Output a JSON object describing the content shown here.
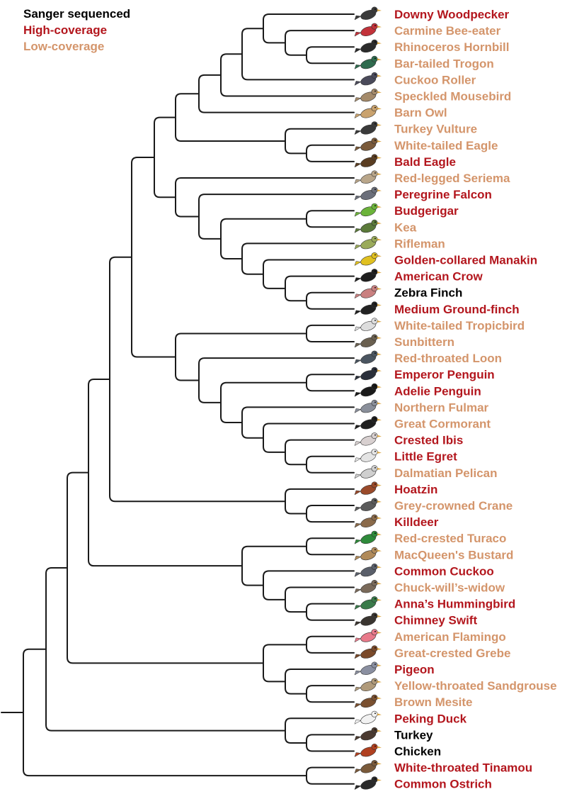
{
  "legend": {
    "sanger": "Sanger sequenced",
    "high": "High-coverage",
    "low": "Low-coverage"
  },
  "colors": {
    "sanger": "#000000",
    "high": "#b3161d",
    "low": "#d4956b"
  },
  "species": [
    {
      "name": "Downy Woodpecker",
      "category": "high",
      "icon": "woodpecker-icon",
      "icon_color": "#3a3a3a"
    },
    {
      "name": "Carmine Bee-eater",
      "category": "low",
      "icon": "bee-eater-icon",
      "icon_color": "#c2323a"
    },
    {
      "name": "Rhinoceros Hornbill",
      "category": "low",
      "icon": "hornbill-icon",
      "icon_color": "#2b2b2b"
    },
    {
      "name": "Bar-tailed Trogon",
      "category": "low",
      "icon": "trogon-icon",
      "icon_color": "#2f6b4e"
    },
    {
      "name": "Cuckoo Roller",
      "category": "low",
      "icon": "cuckoo-roller-icon",
      "icon_color": "#4a4a5a"
    },
    {
      "name": "Speckled Mousebird",
      "category": "low",
      "icon": "mousebird-icon",
      "icon_color": "#a48a6a"
    },
    {
      "name": "Barn Owl",
      "category": "low",
      "icon": "owl-icon",
      "icon_color": "#c9a26e"
    },
    {
      "name": "Turkey Vulture",
      "category": "low",
      "icon": "vulture-icon",
      "icon_color": "#3a3a3a"
    },
    {
      "name": "White-tailed Eagle",
      "category": "low",
      "icon": "eagle-icon",
      "icon_color": "#7a5a3a"
    },
    {
      "name": "Bald Eagle",
      "category": "high",
      "icon": "bald-eagle-icon",
      "icon_color": "#5a3d22"
    },
    {
      "name": "Red-legged Seriema",
      "category": "low",
      "icon": "seriema-icon",
      "icon_color": "#b9a68a"
    },
    {
      "name": "Peregrine Falcon",
      "category": "high",
      "icon": "falcon-icon",
      "icon_color": "#6b6f7a"
    },
    {
      "name": "Budgerigar",
      "category": "high",
      "icon": "budgerigar-icon",
      "icon_color": "#6bb33a"
    },
    {
      "name": "Kea",
      "category": "low",
      "icon": "kea-icon",
      "icon_color": "#5b7a3a"
    },
    {
      "name": "Rifleman",
      "category": "low",
      "icon": "rifleman-icon",
      "icon_color": "#9aaa5a"
    },
    {
      "name": "Golden-collared Manakin",
      "category": "high",
      "icon": "manakin-icon",
      "icon_color": "#e0c020"
    },
    {
      "name": "American Crow",
      "category": "high",
      "icon": "crow-icon",
      "icon_color": "#1e1e1e"
    },
    {
      "name": "Zebra Finch",
      "category": "sanger",
      "icon": "finch-icon",
      "icon_color": "#c98080"
    },
    {
      "name": "Medium Ground-finch",
      "category": "high",
      "icon": "ground-finch-icon",
      "icon_color": "#222222"
    },
    {
      "name": "White-tailed Tropicbird",
      "category": "low",
      "icon": "tropicbird-icon",
      "icon_color": "#dddddd"
    },
    {
      "name": "Sunbittern",
      "category": "low",
      "icon": "sunbittern-icon",
      "icon_color": "#6a6050"
    },
    {
      "name": "Red-throated Loon",
      "category": "low",
      "icon": "loon-icon",
      "icon_color": "#4a5560"
    },
    {
      "name": "Emperor Penguin",
      "category": "high",
      "icon": "penguin-icon",
      "icon_color": "#2a2f3a"
    },
    {
      "name": "Adelie Penguin",
      "category": "high",
      "icon": "adelie-penguin-icon",
      "icon_color": "#1a1a1a"
    },
    {
      "name": "Northern Fulmar",
      "category": "low",
      "icon": "fulmar-icon",
      "icon_color": "#8a8f9a"
    },
    {
      "name": "Great Cormorant",
      "category": "low",
      "icon": "cormorant-icon",
      "icon_color": "#1e1e1e"
    },
    {
      "name": "Crested Ibis",
      "category": "high",
      "icon": "ibis-icon",
      "icon_color": "#d8d0d0"
    },
    {
      "name": "Little Egret",
      "category": "high",
      "icon": "egret-icon",
      "icon_color": "#e4e4e4"
    },
    {
      "name": "Dalmatian Pelican",
      "category": "low",
      "icon": "pelican-icon",
      "icon_color": "#cfcfcf"
    },
    {
      "name": "Hoatzin",
      "category": "high",
      "icon": "hoatzin-icon",
      "icon_color": "#9a4a2a"
    },
    {
      "name": "Grey-crowned Crane",
      "category": "low",
      "icon": "crane-icon",
      "icon_color": "#5a5a5a"
    },
    {
      "name": "Killdeer",
      "category": "high",
      "icon": "killdeer-icon",
      "icon_color": "#8a6a4a"
    },
    {
      "name": "Red-crested Turaco",
      "category": "low",
      "icon": "turaco-icon",
      "icon_color": "#2e8a3a"
    },
    {
      "name": "MacQueen's Bustard",
      "category": "low",
      "icon": "bustard-icon",
      "icon_color": "#b08a5a"
    },
    {
      "name": "Common Cuckoo",
      "category": "high",
      "icon": "cuckoo-icon",
      "icon_color": "#5a5f6a"
    },
    {
      "name": "Chuck-will’s-widow",
      "category": "low",
      "icon": "nightjar-icon",
      "icon_color": "#7a6a5a"
    },
    {
      "name": "Anna’s Hummingbird",
      "category": "high",
      "icon": "hummingbird-icon",
      "icon_color": "#3a7a4a"
    },
    {
      "name": "Chimney Swift",
      "category": "high",
      "icon": "swift-icon",
      "icon_color": "#3a3530"
    },
    {
      "name": "American Flamingo",
      "category": "low",
      "icon": "flamingo-icon",
      "icon_color": "#e87a8a"
    },
    {
      "name": "Great-crested Grebe",
      "category": "low",
      "icon": "grebe-icon",
      "icon_color": "#7a4a2a"
    },
    {
      "name": "Pigeon",
      "category": "high",
      "icon": "pigeon-icon",
      "icon_color": "#8a8fa0"
    },
    {
      "name": "Yellow-throated Sandgrouse",
      "category": "low",
      "icon": "sandgrouse-icon",
      "icon_color": "#b09a7a"
    },
    {
      "name": "Brown Mesite",
      "category": "low",
      "icon": "mesite-icon",
      "icon_color": "#7a5030"
    },
    {
      "name": "Peking Duck",
      "category": "high",
      "icon": "duck-icon",
      "icon_color": "#f2f2f2"
    },
    {
      "name": "Turkey",
      "category": "sanger",
      "icon": "turkey-icon",
      "icon_color": "#4a3a30"
    },
    {
      "name": "Chicken",
      "category": "sanger",
      "icon": "chicken-icon",
      "icon_color": "#b04020"
    },
    {
      "name": "White-throated Tinamou",
      "category": "high",
      "icon": "tinamou-icon",
      "icon_color": "#7a5a3a"
    },
    {
      "name": "Common Ostrich",
      "category": "high",
      "icon": "ostrich-icon",
      "icon_color": "#2a2a2a"
    }
  ],
  "tree": {
    "c": [
      {
        "c": [
          {
            "c": [
              {
                "c": [
                  {
                    "c": [
                      {
                        "c": [
                          {
                            "c": [
                              {
                                "c": [
                                  {
                                    "c": [
                                      {
                                        "c": [
                                          {
                                            "l": 0
                                          },
                                          {
                                            "c": [
                                              {
                                                "l": 1
                                              },
                                              {
                                                "c": [
                                                  {
                                                    "l": 2
                                                  },
                                                  {
                                                    "l": 3
                                                  }
                                                ]
                                              }
                                            ]
                                          }
                                        ]
                                      },
                                      {
                                        "l": 4
                                      }
                                    ]
                                  },
                                  {
                                    "l": 5
                                  }
                                ]
                              },
                              {
                                "l": 6
                              }
                            ]
                          },
                          {
                            "c": [
                              {
                                "l": 7
                              },
                              {
                                "c": [
                                  {
                                    "l": 8
                                  },
                                  {
                                    "l": 9
                                  }
                                ]
                              }
                            ]
                          }
                        ]
                      },
                      {
                        "c": [
                          {
                            "l": 10
                          },
                          {
                            "c": [
                              {
                                "l": 11
                              },
                              {
                                "c": [
                                  {
                                    "c": [
                                      {
                                        "l": 12
                                      },
                                      {
                                        "l": 13
                                      }
                                    ]
                                  },
                                  {
                                    "c": [
                                      {
                                        "l": 14
                                      },
                                      {
                                        "c": [
                                          {
                                            "l": 15
                                          },
                                          {
                                            "c": [
                                              {
                                                "l": 16
                                              },
                                              {
                                                "c": [
                                                  {
                                                    "l": 17
                                                  },
                                                  {
                                                    "l": 18
                                                  }
                                                ]
                                              }
                                            ]
                                          }
                                        ]
                                      }
                                    ]
                                  }
                                ]
                              }
                            ]
                          }
                        ]
                      }
                    ]
                  },
                  {
                    "c": [
                      {
                        "c": [
                          {
                            "l": 19
                          },
                          {
                            "l": 20
                          }
                        ]
                      },
                      {
                        "c": [
                          {
                            "l": 21
                          },
                          {
                            "c": [
                              {
                                "c": [
                                  {
                                    "l": 22
                                  },
                                  {
                                    "l": 23
                                  }
                                ]
                              },
                              {
                                "c": [
                                  {
                                    "l": 24
                                  },
                                  {
                                    "c": [
                                      {
                                        "l": 25
                                      },
                                      {
                                        "c": [
                                          {
                                            "l": 26
                                          },
                                          {
                                            "c": [
                                              {
                                                "l": 27
                                              },
                                              {
                                                "l": 28
                                              }
                                            ]
                                          }
                                        ]
                                      }
                                    ]
                                  }
                                ]
                              }
                            ]
                          }
                        ]
                      }
                    ]
                  }
                ]
              },
              {
                "c": [
                  {
                    "l": 29
                  },
                  {
                    "c": [
                      {
                        "l": 30
                      },
                      {
                        "l": 31
                      }
                    ]
                  }
                ]
              }
            ]
          },
          {
            "c": [
              {
                "c": [
                  {
                    "l": 32
                  },
                  {
                    "l": 33
                  }
                ]
              },
              {
                "c": [
                  {
                    "l": 34
                  },
                  {
                    "c": [
                      {
                        "l": 35
                      },
                      {
                        "c": [
                          {
                            "l": 36
                          },
                          {
                            "l": 37
                          }
                        ]
                      }
                    ]
                  }
                ]
              }
            ]
          }
        ]
      },
      {
        "c": [
          {
            "c": [
              {
                "l": 38
              },
              {
                "l": 39
              }
            ]
          },
          {
            "c": [
              {
                "l": 40
              },
              {
                "c": [
                  {
                    "l": 41
                  },
                  {
                    "l": 42
                  }
                ]
              }
            ]
          }
        ]
      }
    ]
  },
  "outgroups": {
    "c": [
      {
        "l": 43
      },
      {
        "c": [
          {
            "l": 44
          },
          {
            "l": 45
          }
        ]
      }
    ]
  },
  "paleognaths": {
    "c": [
      {
        "l": 46
      },
      {
        "l": 47
      }
    ]
  }
}
